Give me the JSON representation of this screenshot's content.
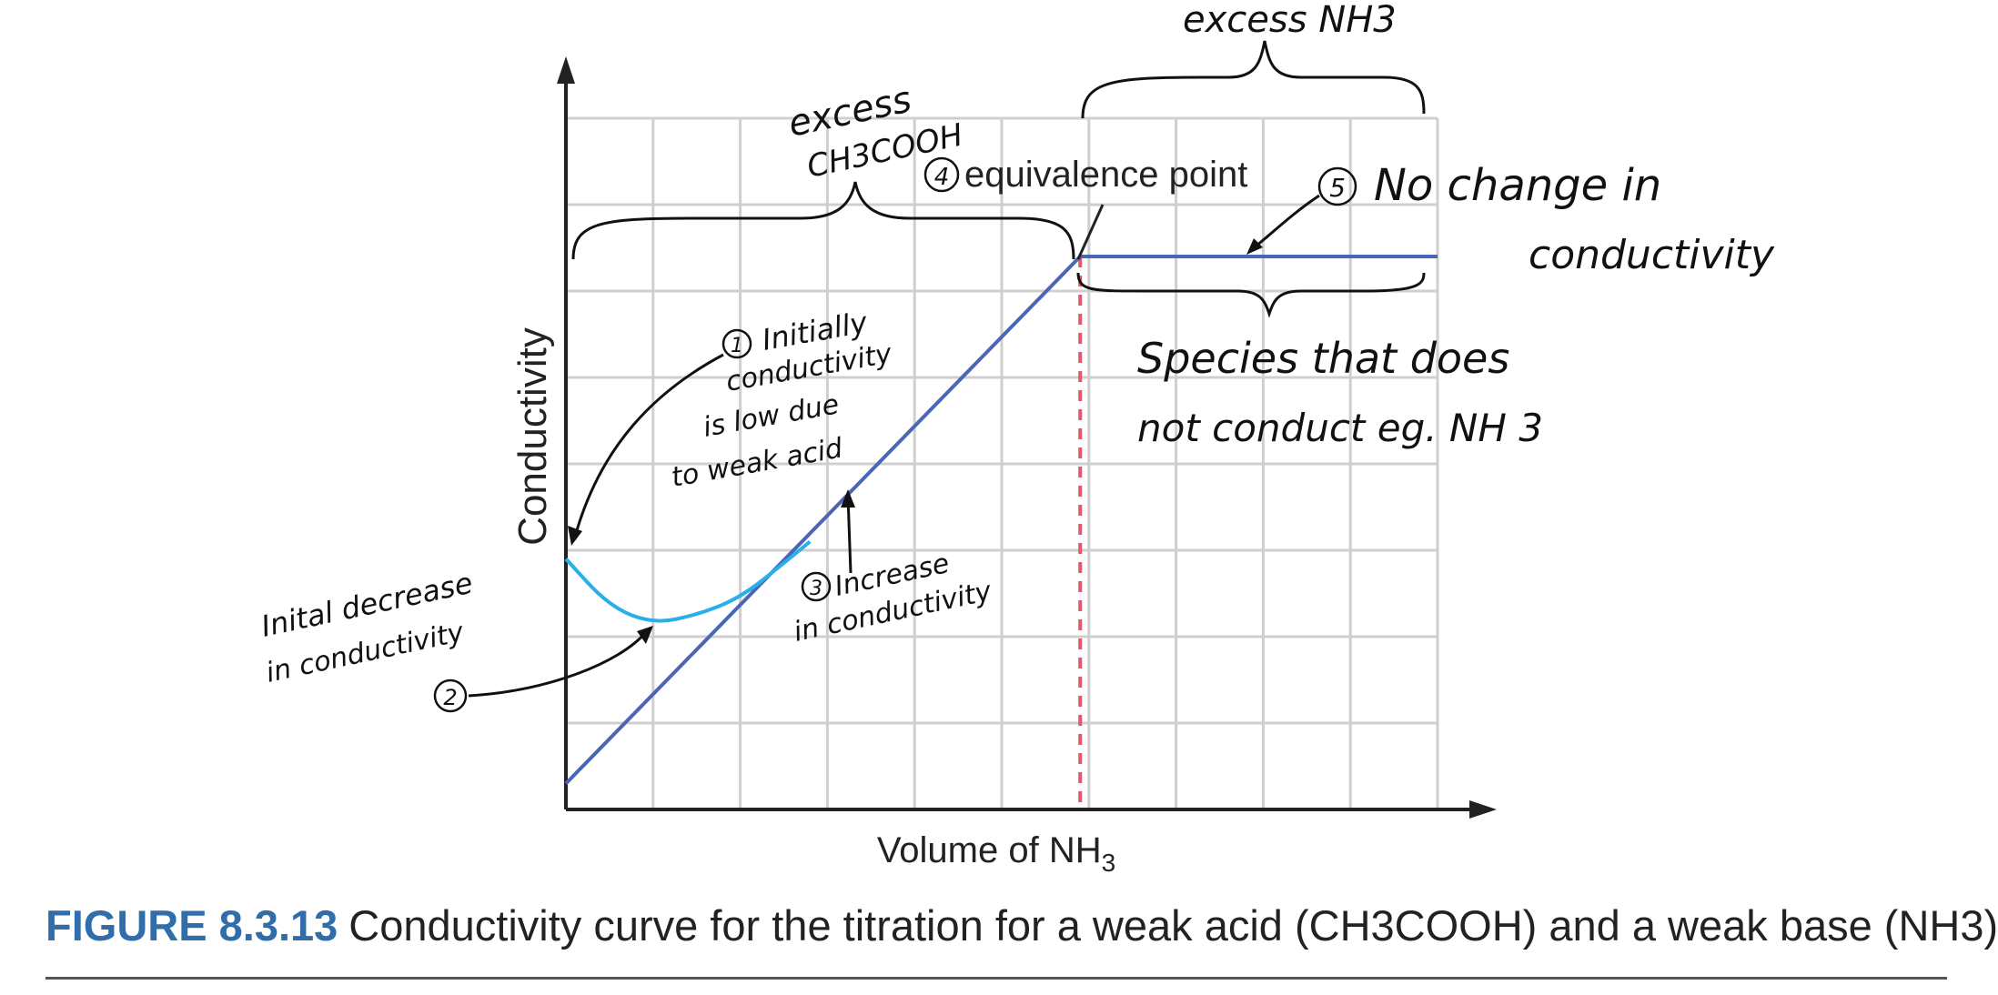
{
  "chart_data": {
    "type": "line",
    "xlabel": "Volume of NH",
    "xlabel_sub": "3",
    "ylabel": "Conductivity",
    "xlim": [
      0,
      10
    ],
    "ylim": [
      0,
      8
    ],
    "grid": true,
    "series": [
      {
        "color": "#4a67b5",
        "x": [
          0,
          5.9,
          10
        ],
        "y": [
          0.3,
          6.4,
          6.4
        ]
      },
      {
        "color": "#2ab0e8",
        "x": [
          0,
          0.5,
          1,
          1.5,
          2,
          2.5,
          2.8
        ],
        "y": [
          2.9,
          2.35,
          2.15,
          2.25,
          2.45,
          2.85,
          3.1
        ]
      }
    ],
    "equivalence_x": 5.9,
    "equivalence_color": "#e05a6a",
    "annotations": {
      "equivalence_num": "4",
      "equivalence_label": "equivalence point",
      "excess_acid_1": "excess",
      "excess_acid_2": "CH3COOH",
      "excess_base": "excess NH3",
      "note1_num": "1",
      "note1_lines": [
        "Initially",
        "conductivity",
        "is low due",
        "to weak acid"
      ],
      "note2_num": "2",
      "note2_lines": [
        "Inital decrease",
        "in conductivity"
      ],
      "note3_num": "3",
      "note3_lines": [
        "Increase",
        "in conductivity"
      ],
      "note5_num": "5",
      "note5_lines": [
        "No change in",
        "conductivity"
      ],
      "species_lines": [
        "Species that does",
        "not conduct eg. NH 3"
      ]
    }
  },
  "caption": {
    "figure": "FIGURE 8.3.13",
    "text": "Conductivity curve for the titration for a weak acid (CH3COOH) and a weak base (NH3)"
  },
  "colors": {
    "axis": "#222222",
    "grid": "#cfcfcf",
    "brand": "#2f6eaa"
  }
}
